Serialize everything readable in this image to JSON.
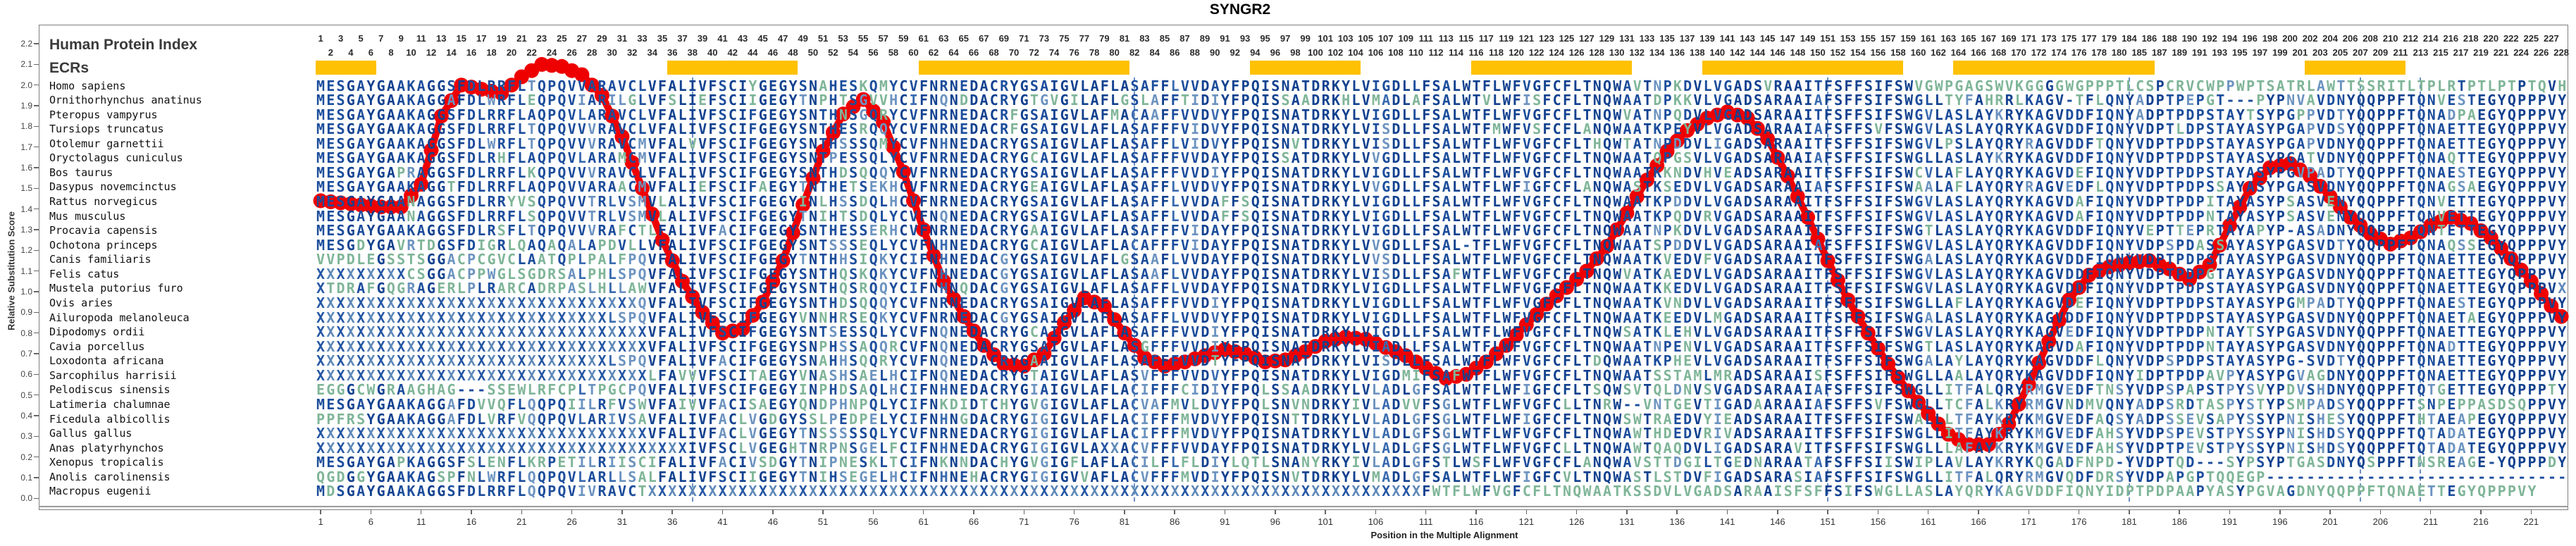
{
  "title": "SYNGR2",
  "header": {
    "human_protein_index_label": "Human Protein Index",
    "ecrs_label": "ECRs"
  },
  "y_axis": {
    "label": "Relative Substitution Score",
    "ticks": [
      "0.0",
      "0.1",
      "0.2",
      "0.3",
      "0.4",
      "0.5",
      "0.6",
      "0.7",
      "0.8",
      "0.9",
      "1.0",
      "1.1",
      "1.2",
      "1.3",
      "1.4",
      "1.5",
      "1.6",
      "1.7",
      "1.8",
      "1.9",
      "2.0",
      "2.1",
      "2.2"
    ]
  },
  "x_axis": {
    "label": "Position in the Multiple Alignment",
    "ticks": [
      1,
      6,
      11,
      16,
      21,
      26,
      31,
      36,
      41,
      46,
      51,
      56,
      61,
      66,
      71,
      76,
      81,
      86,
      91,
      96,
      101,
      106,
      111,
      116,
      121,
      126,
      131,
      136,
      141,
      146,
      151,
      156,
      161,
      166,
      171,
      176,
      181,
      186,
      191,
      196,
      201,
      206,
      211,
      216,
      221
    ]
  },
  "human_protein_index": [
    1,
    2,
    3,
    4,
    5,
    6,
    7,
    8,
    9,
    10,
    11,
    12,
    13,
    14,
    15,
    16,
    17,
    18,
    19,
    20,
    21,
    22,
    23,
    24,
    25,
    26,
    27,
    28,
    29,
    30,
    31,
    32,
    33,
    34,
    35,
    36,
    37,
    38,
    39,
    40,
    41,
    42,
    43,
    44,
    45,
    46,
    47,
    48,
    49,
    50,
    51,
    52,
    53,
    54,
    55,
    56,
    57,
    58,
    59,
    60,
    61,
    62,
    63,
    64,
    65,
    66,
    67,
    68,
    69,
    70,
    71,
    72,
    73,
    74,
    75,
    76,
    77,
    78,
    79,
    80,
    81,
    82,
    83,
    84,
    85,
    86,
    87,
    88,
    89,
    90,
    91,
    92,
    93,
    94,
    95,
    96,
    97,
    98,
    99,
    100,
    101,
    102,
    103,
    104,
    105,
    106,
    107,
    108,
    109,
    110,
    111,
    112,
    113,
    114,
    115,
    116,
    117,
    118,
    119,
    120,
    121,
    122,
    123,
    124,
    125,
    126,
    127,
    128,
    129,
    130,
    131,
    132,
    133,
    134,
    135,
    136,
    137,
    138,
    139,
    140,
    141,
    142,
    143,
    144,
    145,
    146,
    147,
    148,
    149,
    150,
    151,
    152,
    153,
    154,
    155,
    156,
    157,
    158,
    159,
    160,
    161,
    162,
    163,
    164,
    165,
    166,
    167,
    168,
    169,
    170,
    171,
    172,
    173,
    174,
    175,
    176,
    177,
    178,
    179,
    180,
    184,
    185,
    186,
    187,
    188,
    189,
    190,
    191,
    192,
    193,
    194,
    195,
    196,
    197,
    198,
    199,
    200,
    201,
    202,
    203,
    204,
    205,
    206,
    207,
    208,
    209,
    210,
    211,
    212,
    213,
    214,
    215,
    216,
    217,
    218,
    219,
    220,
    221,
    222,
    224,
    225,
    226,
    227,
    228
  ],
  "ecr_regions": [
    {
      "start": 1,
      "end": 6
    },
    {
      "start": 36,
      "end": 48
    },
    {
      "start": 61,
      "end": 81
    },
    {
      "start": 94,
      "end": 104
    },
    {
      "start": 116,
      "end": 131
    },
    {
      "start": 139,
      "end": 158
    },
    {
      "start": 164,
      "end": 183
    },
    {
      "start": 199,
      "end": 208
    }
  ],
  "exon_boundaries": [
    38,
    82,
    151,
    181,
    204,
    210
  ],
  "alignment": {
    "num_columns": 224,
    "species": [
      {
        "name": "Homo sapiens",
        "seq": "MESGAYGAAKAGGSFDLRRFLTQPQVVARAVCLVFALIVFSCIYGEGYSNAHESKQMYCVFNRNEDACRYGSAIGVLAFLASAFFLVVDAYFPQISNATDRKYLVIGDLLFSALWTFLWFVGFCFLTNQWAVTNPKDVLVGADSVRAAITFSFFSIFSWVGWPGAGSWVKGGGGWGPPPTLCSPCRVCWPPWPTSATRLAWTTSSRITLTPLRTPTLPTPTQVH"
      },
      {
        "name": "Ornithorhynchus anatinus",
        "seq": "MESGAYGAAKAGGAFDLWRFLEQPQVIARILGLVFSLIEFSCIIGEGYTNPHTSGVVHCIFNQNDDACRYGTGVGILAFLGSLAFFTIDIYFPQISSAADRKHLVMADLAFSALWTVLWFISFCFLTNQWAATDPKKVLVGADSARAAIAFSFFSIFSWGLLTYFAHRRLKAGV-TFLQNYADPTPEPGT---PYPNVAVDNYQQPPFTQNVESTEGYQPPPVY"
      },
      {
        "name": "Pteropus vampyrus",
        "seq": "MESGAYGAAKAGGSFDLRRFLAQPQVLARAVCLVFALIVFSCIFGEGYSNTHNSGQRYCVFNRNEDACRFGSAIGVLAFMACAAFFVVDVYFPQISNATDRKYLVIGDLLFSALWTFLWFVGFCFLTNQWVATNPQDVLVGADSARAAITFSFFSIFSWGVLASLAYKRYKAGVDDFIQNYADPTPDPSTAYTSYPGPPVDTYQQPPFTQNADPAEGYQPPPVY"
      },
      {
        "name": "Tursiops truncatus",
        "seq": "MESGAYGAAKAGGSFDLRRFLTQPQVVVRAVCLVFALIVFSCIFGEGYSNTHESRQQYCVFNRNEDACRFGSAIGVLAFLASAFFFVIDVYFPQISNATDRKYLVISDLLFSALWTFMWFVSFCFLANQWAATKPEYVLVGADSARAAIAFSFFSVFSWGVLASLAYQRYKAGVDDFIQNYVDPTLDPSTAYASYPGAPVDSYQQPPFTQNAETTEGYQPPPVY"
      },
      {
        "name": "Otolemur garnettii",
        "seq": "MESGAYGAAKAGGSFDLWRFLTQPQVVVRAVCMVFALVVFSCIFGEGYSNTHSSSQMYCVFNHNEDACRYGSAIGVLAFLASAFFLVIDVYFPQISNVTDRKYLVISDLLFSALWTFLWFVGFCFLTHQWTATNPDDVLIGADSARAAITFSFFSIFSWGVLPSLAYQRYRAGVDDFTQNYVDPTPDPSTAYASYPGAPVDNYQQPPFTQNAETTEGYQPPPVY"
      },
      {
        "name": "Oryctolagus cuniculus",
        "seq": "MESGAYGAAKAGGSFDLRHFLAQPQVLARAMCMVFALIVFSCIFGEGYSNTPESSQLYCVFNRNEDACRYGCAIGVLAFLASAFFFVVDAYFPQISSATDRKYLVVGDLLFSALWTFLWFVGFCFLTNQWAATQPGSVLVGADSARAAIAFSFFSIFSWGLLASLAYKRYKAGVDDFIQNYVDPTPDPSTAYASYPGATVDNYQQPPFTQNAQTTEGYQPPPVY"
      },
      {
        "name": "Bos taurus",
        "seq": "MESGAYGAPRAGGSFDLRRFLKQPQVVVRAVCLVFALIVFSCIFGEGYSNTHDSQQQYCVFNRNEDACRYGSAIGVLAFLASAFFFVVDIYFPQISNATDRKYLVIGDLLFSALWTFLWFVGFCFLTNQWAATKKNDVHVEADSARAAITFSFFSIFSWCVLAFLAYQRYKAGVDEFIQNYVDPTPDPSTAYASYPGVPADTYQQPPFTQNAESTEGYQPPPVY"
      },
      {
        "name": "Dasypus novemcinctus",
        "seq": "MESGAYGAAKAGGTFDLRRFLAQPQVVARAACMVFALIEFSCIFAEGYTNTHETSEKHCVFNRNEDACRYGEAIGVLAFLASAFFLVVDVYFPQISNATDRKYLVVGDLLFSALWTFLWFIGFCFLANQWASTKSEDVLVGADSARAAIAFSFFSIFSWAALAFLAYQRYRAGVEDFLQNYVDPTPDPSSAYASYPGASVDNYQQPPFTQNAGSAEGYQPPPVY"
      },
      {
        "name": "Rattus norvegicus",
        "seq": "MESGAYGAANAGGSFDLRRYVSQPQVVTRLVSMVLALIVFSCIFGEGYINLHSSDQLHCVFNRNEDACRYGSAIGVLAFLASAFFLVVDAFFSQISNATDRKYLVIGDLLFSALWTFLWFVGFCFLTNQWAATKPDDVLVGADSARAAITFSFFSIFSWGVLASLAYQRYKAGVDAFIQNYVDPTPDPITAYASYPSASVENYQQPPFTQNVETTEGYQPPPVY"
      },
      {
        "name": "Mus musculus",
        "seq": "MESGAYGAANAGGSFDLRRFLSQPQVVTRLVSMVLALIVFSCIFGEGYTNIHTSDQLYCVFNQNEDACRYGSAIGVLAFLASAFFLVVDAFFSQISNATDRKYLVIGDLLFSALWTFLWFVGFCFLTNQWAATKPQDVRVGADSARAAITFSFFSIFSWGVLASLAYQRYKAGVDAFIQNYVDPTPDPNTAYASYPSASVENYQQPPFTQNVETTEGYQPPPVY"
      },
      {
        "name": "Procavia capensis",
        "seq": "MESGAYGAAKAGGSFDLRSFLTQPQVVVRAFCTLFALIVFACIFGEGYSNTHESSERHCVFNRNEDACRYGAAIGVLAFLASAFFFVIDAYFPQISNATDRKYLVIGDLLFSALWTFLWFVGFCFLTNQWAATNPKDVLVGADSARAAITFSFFSIFSWGTLASLAYQRYKAGVDDFIQNYVEPTTEPRTAYAPYP-ASADNYQQPPFTQNTETTEGYQPPPVY"
      },
      {
        "name": "Ochotona princeps",
        "seq": "MESGDYGAVRTDGSFDIGRLQAQAQALAPDVLLVFALIVFSCIFGEGYSNTSSSEQLYCVFNHNEDACRYGCAIGVLAFLACAFFFVIDAYFPQISNATDRKYLVVGDLLFSAL-TFLWFVGFCFLTNQWAATSPDDVLVGADSARAAIAFSFFSIFSWGVLASLAYQRYKAGVDDFIQNYVDPSPDASSAYASYPGASVDTYQQPPFTQNAQSSEGYQPPPVY"
      },
      {
        "name": "Canis familiaris",
        "seq": "VVPDLEGSSTSGGACPCGVCLAATQPLPALFPQVFALIVFSCIFGEGYTNTHHSIQKYCIFNHNEDACGYGSAIGVLAFLGSAAFLVVDAYFPQISNATDRKYLVVSDLLFSALWTFLWFVGFCFLTNQWAATKVEDVFVGADSARAAITFSFFSIFSWGALASLAYQRYKAGVDDFIQNYVDPTPDPSTAYASYPGASVDNYQQPPFTQNAETTEGYQPPPVY"
      },
      {
        "name": "Felis catus",
        "seq": "XXXXXXXXXCSGGACPPWGLSGDRSALPHLSPQVFALIVFSCIFGEGYSNTHQSKQKYCVFNHNEDACGYGSAIGVLAFLASAAFLVVDAYFPQISNATDRKYLVISDLLFSAFWTFLWFVGFCFLTNQWVATKAEDVLVGADSARAAITFSFFSIFSWGVLASLAYQRYKAGVDDFIQNYVDPTPDPGTAYASYPGASVDNYQQPPFTQNAETTEGYQPPPVY"
      },
      {
        "name": "Mustela putorius furo",
        "seq": "XTDRAFGQGRAGERLPLRARCADRPASLHLLAWVFALIVFSCIFGEGYSNTHQSRQQYCIFNHNQDACGYGSAIGVLAFLASAFFLVVDAYFPQISNATDRKYLVIGDLLFSALWTFLWFVGFCFLTNQWAATKKEDVLVGADSARAAITFSFFSIFSWGVLASLAYQRYKAGVDDFIQNYVDPTPDPSTAYASYPGASVDNYQQPPFTQNAETTEGYQPPPVX"
      },
      {
        "name": "Ovis aries",
        "seq": "XXXXXXXXXXXXXXXXXXXXXXXXXXXXXXXXQVFALIVFSCIFGEGYSNTHDSQQQYCVFNRNEDACRYGSAIGVLAFLASAFFFVVDIYFPQISNATDRKYLVIGDLLFSALWTFLWFVGFCFLTNQWAATKVNDVLVGADSARAAITFSFFSIFSWGLLAFLAYQRYKAGVDEFIQNYVDPTPDPSTAYASYPGMPADTYQQPPFTQNAESTEGYQPPPVY"
      },
      {
        "name": "Ailuropoda melanoleuca",
        "seq": "XXXXXXXXXXXXXXXXXXXXXXXXXXXXXLSPQVFALIVFSCIFGEGYVNNHRSEQKYCVFNRNEDACGYGSAIGVLAFLASAFFLVVDVYFPQISNATDRKYLVIGDLLFSALWTFLWFVGFCFLTNQWAATKEEDVLMGADSARAAITFSFFSIFSWGALASLAYQRYKAGVDDFIQNYVDPTPDPSTAYASYPGASVDNYQQPPFTQNAETAEGYQPPPVY"
      },
      {
        "name": "Dipodomys ordii",
        "seq": "XXXXXXXXXXXXXXXXXXXXXXXXXXXXXXXXXVFALIVFSCIFGEGYSNTSESSQLYCVFNQNEDACRYGCAIGVLAFLASAFFFVVDIYFPQISNATDRKYLVIGDLLFSALWTFLWFVGFCFLTNQWSATKLEHVLVGADSARAAITFSFFSIFSWGVLASLAYQRYKAGVEDFIQNYVDPTPDPNTAYTSYPGASVDNYQQPPFTQNAETTEGYQPPPVY"
      },
      {
        "name": "Cavia porcellus",
        "seq": "XXXXXXXXXXXXXXXXXXXXXXXXXXXXXXXXXVFALIVFSCIFGEGYSNPHSSAQQRCVFNQNEDACRYGSAIGVLAFLASGFFFVVDIYFPQISNATDRKYLVIADLLFSALWTFLWFVGFCFLTNQWAATNPENVLVGADSARAAITFSFFSIFSWGTLASLAYQRYKAGVDAFIQNYVDPTPDPNTAYASYPGASVDNYQQPPFTQNADTTEGYQPPPVY"
      },
      {
        "name": "Loxodonta africana",
        "seq": "XXXXXXXXXXXXXXXXXXXXXXXXXXXXXLSPQVFALIVFACIFGEGYSNAHHSQQRYCVFNQNEDACRYGAAIGVLAFLASAFFFVVDTYFPQISNATDRKYLVISDLLFSALWTFLWFVGFCFLTDQWAATKPHEVLVGADSARAAITFSFFSIFSWGALAYLAYQRYKAGVDDFLQNYVDPSPDPSTAYASYPG-SVDTYQQPPFTQNAETTEGYQPPPVY"
      },
      {
        "name": "Sarcophilus harrisii",
        "seq": "XXXXXXXXXXXXXXXXXXXXXXXXXXXXXXXXXLFAVVVFSCITAEGYVNASHSAELHCIFNQNEDACRYGTAIGVLAFLASVFFFVVDVYFPQISNATDRKYLVIGDMIFSAFWTFLWFVGFCFLTNQWAATSSTAMLMRADSARAAISFSFFSIFSWGLLAALAYQRYKAGVDDFIQNYIDPTPDPAVPYASYPGVAGDNYQQPPFTQNAETTEGYQPPPVY"
      },
      {
        "name": "Pelodiscus sinensis",
        "seq": "EGGGCWGRAAGHAG---SSEWLRFCPLTPGCPQVFALIVFSCIFGEGYINPHDSAQLHCIFNHNEDACRYGIAIGVLAFLACIFFFCIDIYFPQLSSAADRKYLVLADLGFSALWTFLWFIGFCFLTSQWSVTQLDNVSVGADSARAAIAFSFFSIFSWGLLITFALQRYRMGVEDFTNSYVDPSPAPSTPYSVYPDVSHDNYQQPPFTQTGETTEGYQPPPTY"
      },
      {
        "name": "Latimeria chalumnae",
        "seq": "MESGAYGAAKAGGAFDVVQFLQQPQIILRFVSWVFAIVVFACISAEGYQNDPHNPQLYCIFNKDIDTCHYGVGIGVLAFLACVAFMVLDVYFPQLSNVNDRKYIVLADVVFSGLWTFLWFVGFCLLTNRW--VNTGEVTIGADAARAAIAFSFFSVFSWGLLTCFALKRYRMGVNDMVQNYADPSRDTASPYSTYPSMPADSYQQPPFTSNPEPPASDSQPPVY"
      },
      {
        "name": "Ficedula albicollis",
        "seq": "PPFRSYGAAKAGGAFDLVRFVQQPQVLARIVSAVFALIVFACLVGDGYSSLPEDPELYCIFNHNGDACRYGIGIGVLAFLACIFFFMVDVYFPQISNTTDRKYLVLADLGFSGLWTFLWFIGFCFLTNQWSWTRAEDVYIEADSARAAITFSFFSIFSWALLLTFAYKRYKMGVEDFAQSYADPSSEVSAPYSSYPNISHESYQQPPFTHTAEAPEGYQPPPVY"
      },
      {
        "name": "Gallus gallus",
        "seq": "XXXXXXXXXXXXXXXXXXXXXXXXXXXXXXXXXVFALIVFACLVGEGYTNSSSSSQLYCVFNRNEDACRYGIGIGVLAFLACIFFFMVDVYFPQISNATDRKYLVLADLGFSGLWTFLWFVGFCFLTNQWAWTHDEDVRIVADSARAAITFSFFSIFSWGLLITFAYKRYKMGVEDFAHSYVDPSPEVSTPYSSYPNISHDSYQQPPFTQTADATEGYQPPPVY"
      },
      {
        "name": "Anas platyrhynchos",
        "seq": "XXXXXXXXXXXXXXXXXXXXXXXXXXXXXXXXXXXXXIVFSCLVGEGHTNRPNSGELFCIFNHNEDACRYGIGIGVLAXXACVFFFVVDAYFPQISNATDRKYLVLADLGFSGLWTFLWFVGFCLLTNQWAWTQAQDVLIGADSARAVITFSFFSIFSWGLLLAFAYKRYKMGVEDFAHSYVDPTPEVSTPYSSYPNISHDSYQQPPFTQTADATEGYQPPPVY"
      },
      {
        "name": "Xenopus tropicalis",
        "seq": "MESGAYGAPKAGGSFSLENFLKRPETILRIISCIFALIVFACIVSDGYTNIPNESKLTCIFNKNNDACHYGVGIGFLAFLACILFLFLDIYLQTLSNANYRKYIVLADLGFSTLWSFLWFVGFCFLANQWAVSTTDGILTGEDNARAATAFSFFSIISWIPLAVLAYKRYKQGADFNPD-YVDPTQD---SYPSYPTGASDNYQSPPFTNSREAGE-YQPPPDY"
      },
      {
        "name": "Anolis carolinensis",
        "seq": "QGDGGYGAAKAGSPFNLWRFLQQPQVLARLLSALFALIVFSCIIGEGYTNIHSEGELHCIFNHNEHACRYGIGIGVVAFLACVFFFMVDIYFPQISNVTDRKYLVMADLGFSALWTFLWFIGFCVLTNQWASTLSTDVFIGADSARASIAFSFFSIFSWGLLITFALQRYRMGVQDFDRSYVDPAPGPTQQEGP------------------------------"
      },
      {
        "name": "Macropus eugenii",
        "seq": "MDSGAYGAAKAGGSFDLRRFLQQPQVIVRAVCTXXXXXXXXXXXXXXXXXXXXXXXXXXXXXXXXXXXXXXXXXXXXXXXXXXXXXXXXXXXXXXXXXXXXXXXXXXXXXFWTFLWFVGFCFLTNQWAATKSSDVLVGADSARAAISFSFFSIFSWGLLASLAYQRYKAGVDDFIQNYIDPTPDPAAPYASYPGVAGDNYQQPPFTQNAETTEGYQPPPVY"
      }
    ]
  },
  "chart_data": {
    "type": "line",
    "title": "SYNGR2",
    "xlabel": "Position in the Multiple Alignment",
    "ylabel": "Relative Substitution Score",
    "xlim": [
      1,
      224
    ],
    "ylim": [
      0.0,
      2.2
    ],
    "grid": false,
    "legend": "none",
    "series": [
      {
        "name": "Relative Substitution Score",
        "color": "#ee0000",
        "x": [
          1,
          3,
          5,
          7,
          9,
          11,
          13,
          15,
          17,
          19,
          21,
          23,
          25,
          27,
          29,
          31,
          33,
          35,
          37,
          39,
          41,
          43,
          45,
          47,
          49,
          51,
          53,
          55,
          57,
          59,
          61,
          63,
          65,
          67,
          69,
          71,
          73,
          75,
          77,
          79,
          81,
          83,
          85,
          87,
          89,
          91,
          93,
          95,
          97,
          99,
          101,
          103,
          105,
          107,
          109,
          111,
          113,
          115,
          117,
          119,
          121,
          123,
          125,
          127,
          129,
          131,
          133,
          135,
          137,
          139,
          141,
          143,
          145,
          147,
          149,
          151,
          153,
          155,
          157,
          159,
          161,
          163,
          165,
          167,
          169,
          171,
          173,
          175,
          177,
          179,
          181,
          183,
          185,
          187,
          189,
          191,
          193,
          195,
          197,
          199,
          201,
          203,
          205,
          207,
          209,
          211,
          213,
          215,
          217,
          219,
          221,
          223,
          224
        ],
        "y": [
          1.44,
          1.43,
          1.42,
          1.41,
          1.41,
          1.52,
          1.85,
          2.0,
          1.98,
          1.96,
          2.04,
          2.1,
          2.09,
          2.05,
          1.95,
          1.75,
          1.5,
          1.25,
          1.05,
          0.9,
          0.8,
          0.82,
          0.95,
          1.15,
          1.42,
          1.68,
          1.86,
          1.93,
          1.82,
          1.58,
          1.3,
          1.05,
          0.88,
          0.74,
          0.65,
          0.64,
          0.7,
          0.85,
          0.97,
          0.93,
          0.8,
          0.68,
          0.64,
          0.66,
          0.69,
          0.72,
          0.7,
          0.66,
          0.67,
          0.71,
          0.76,
          0.78,
          0.77,
          0.73,
          0.69,
          0.63,
          0.58,
          0.6,
          0.66,
          0.74,
          0.84,
          0.94,
          1.02,
          1.1,
          1.22,
          1.38,
          1.54,
          1.68,
          1.78,
          1.84,
          1.87,
          1.84,
          1.74,
          1.56,
          1.36,
          1.15,
          0.96,
          0.8,
          0.65,
          0.52,
          0.41,
          0.31,
          0.26,
          0.26,
          0.36,
          0.55,
          0.76,
          0.96,
          1.08,
          1.12,
          1.14,
          1.15,
          1.11,
          1.06,
          1.13,
          1.32,
          1.5,
          1.6,
          1.62,
          1.56,
          1.46,
          1.36,
          1.28,
          1.23,
          1.26,
          1.32,
          1.36,
          1.33,
          1.26,
          1.16,
          1.05,
          0.93,
          0.88
        ]
      }
    ],
    "annotations": {
      "ecr_bars_positions": [
        [
          1,
          6
        ],
        [
          36,
          48
        ],
        [
          61,
          81
        ],
        [
          94,
          104
        ],
        [
          116,
          131
        ],
        [
          139,
          158
        ],
        [
          164,
          183
        ],
        [
          199,
          208
        ]
      ],
      "vertical_dashed_lines_positions": [
        38,
        82,
        151,
        181,
        204,
        210
      ]
    }
  },
  "colors": {
    "curve": "#ee0000",
    "ecr_bar": "#ffc103",
    "dashed_line": "#3b6cb0",
    "seq_navy": "#12418f",
    "seq_blue": "#1c4d9c",
    "seq_mid": "#3a6bb0",
    "seq_steel": "#6c93c0",
    "seq_green": "#7fb598",
    "seq_x_dark": "#2456a4",
    "seq_x_light": "#5e88b8",
    "axis_border": "#7f7f7f",
    "label_text": "#333333"
  }
}
